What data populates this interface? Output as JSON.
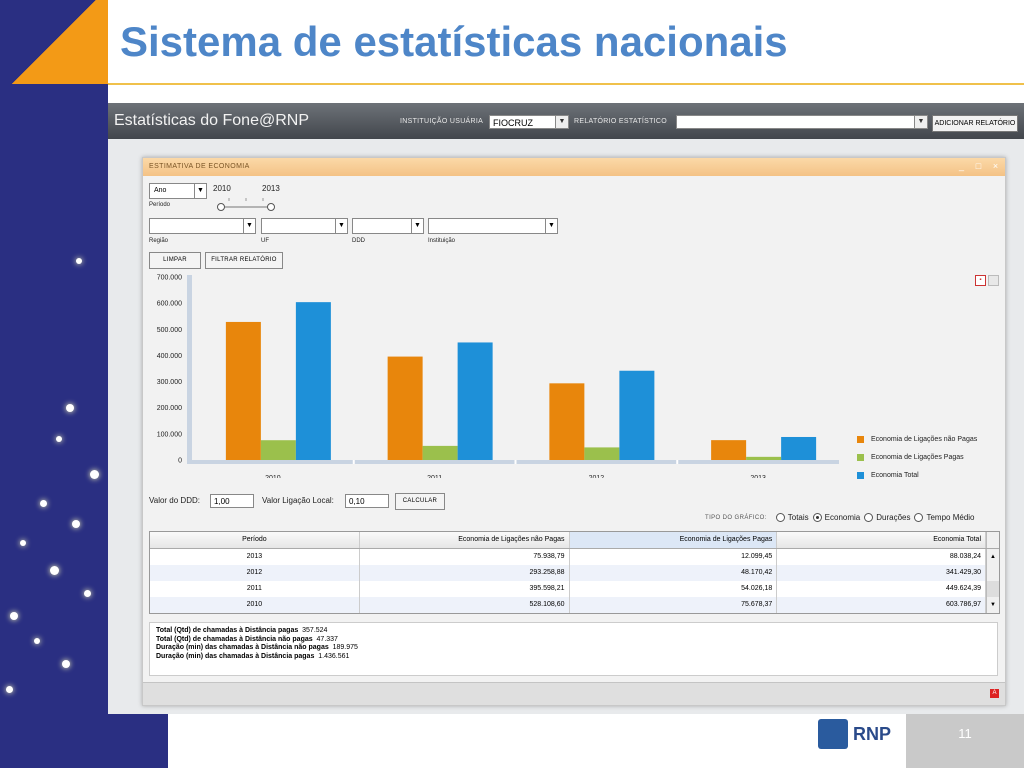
{
  "slide": {
    "title": "Sistema de estatísticas nacionais",
    "number": "11",
    "logo_text": "RNP"
  },
  "app": {
    "title": "Estatísticas do Fone@RNP",
    "instituicao_label": "INSTITUIÇÃO USUÁRIA",
    "instituicao_value": "FIOCRUZ",
    "relatorio_label": "RELATÓRIO ESTATÍSTICO",
    "relatorio_value": "",
    "adicionar_button": "ADICIONAR RELATÓRIO"
  },
  "panel": {
    "title": "ESTIMATIVA DE ECONOMIA",
    "periodo_select": "Ano",
    "periodo_label": "Período",
    "slider_start": "2010",
    "slider_end": "2013",
    "regiao_label": "Região",
    "uf_label": "UF",
    "ddd_label": "DDD",
    "instituicao_label": "Instituição",
    "limpar_button": "LIMPAR",
    "filtrar_button": "FILTRAR RELATÓRIO",
    "valor_ddd_label": "Valor do DDD:",
    "valor_ddd_value": "1,00",
    "valor_local_label": "Valor Ligação Local:",
    "valor_local_value": "0,10",
    "calcular_button": "CALCULAR",
    "tipo_grafico_label": "TIPO DO GRÁFICO:",
    "radio_options": [
      "Totais",
      "Economia",
      "Durações",
      "Tempo Médio"
    ],
    "radio_selected": "Economia",
    "pdf_icon": "pdf-icon"
  },
  "chart_data": {
    "type": "bar",
    "categories": [
      "2010",
      "2011",
      "2012",
      "2013"
    ],
    "series": [
      {
        "name": "Economia de Ligações não Pagas",
        "color": "#e8860c",
        "values": [
          528108.6,
          395598.21,
          293258.88,
          75938.79
        ]
      },
      {
        "name": "Economia de Ligações Pagas",
        "color": "#9bc04c",
        "values": [
          75678.37,
          54026.18,
          48170.42,
          12099.45
        ]
      },
      {
        "name": "Economia Total",
        "color": "#1e90d8",
        "values": [
          603786.97,
          449624.39,
          341429.3,
          88038.24
        ]
      }
    ],
    "ylim": [
      0,
      700000
    ],
    "yticks": [
      "0",
      "100.000",
      "200.000",
      "300.000",
      "400.000",
      "500.000",
      "600.000",
      "700.000"
    ],
    "legend": "right",
    "grid": false
  },
  "table": {
    "headers": [
      "Período",
      "Economia de Ligações não Pagas",
      "Economia de Ligações Pagas",
      "Economia Total"
    ],
    "rows": [
      [
        "2013",
        "75.938,79",
        "12.099,45",
        "88.038,24"
      ],
      [
        "2012",
        "293.258,88",
        "48.170,42",
        "341.429,30"
      ],
      [
        "2011",
        "395.598,21",
        "54.026,18",
        "449.624,39"
      ],
      [
        "2010",
        "528.108,60",
        "75.678,37",
        "603.786,97"
      ]
    ]
  },
  "summary": [
    {
      "label": "Total (Qtd) de chamadas à Distância pagas",
      "value": "357.524"
    },
    {
      "label": "Total (Qtd) de chamadas à Distância não pagas",
      "value": "47.337"
    },
    {
      "label": "Duração (min) das chamadas à Distância não pagas",
      "value": "189.975"
    },
    {
      "label": "Duração (min) das chamadas à Distância pagas",
      "value": "1.436.561"
    }
  ]
}
